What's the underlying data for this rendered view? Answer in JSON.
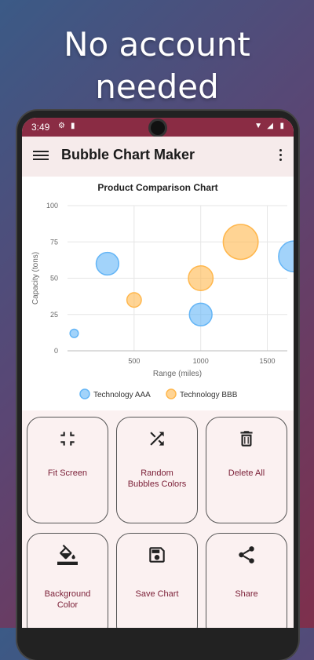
{
  "headline": "No account\nneeded",
  "status": {
    "time": "3:49"
  },
  "appbar": {
    "title": "Bubble Chart Maker"
  },
  "colors": {
    "accent": "#8a2c44",
    "seriesA": "#64b5f6",
    "seriesB": "#ffb74d"
  },
  "chart_data": {
    "type": "scatter",
    "title": "Product Comparison Chart",
    "xlabel": "Range (miles)",
    "ylabel": "Capacity (tons)",
    "xlim": [
      0,
      1650
    ],
    "ylim": [
      0,
      100
    ],
    "xticks": [
      500,
      1000,
      1500
    ],
    "yticks": [
      0,
      25,
      50,
      75,
      100
    ],
    "grid": true,
    "legend_position": "bottom",
    "series": [
      {
        "name": "Technology AAA",
        "color": "#64b5f6",
        "points": [
          {
            "x": 50,
            "y": 12,
            "size": 1
          },
          {
            "x": 300,
            "y": 60,
            "size": 8
          },
          {
            "x": 1000,
            "y": 25,
            "size": 8
          },
          {
            "x": 1700,
            "y": 65,
            "size": 12
          }
        ]
      },
      {
        "name": "Technology BBB",
        "color": "#ffb74d",
        "points": [
          {
            "x": 500,
            "y": 35,
            "size": 4
          },
          {
            "x": 1000,
            "y": 50,
            "size": 9
          },
          {
            "x": 1300,
            "y": 75,
            "size": 14
          }
        ]
      }
    ]
  },
  "buttons": [
    {
      "id": "fit",
      "label": "Fit Screen",
      "icon": "fit-screen-icon"
    },
    {
      "id": "random",
      "label": "Random\nBubbles Colors",
      "icon": "shuffle-icon"
    },
    {
      "id": "delete",
      "label": "Delete All",
      "icon": "trash-icon"
    },
    {
      "id": "bg",
      "label": "Background\nColor",
      "icon": "paint-bucket-icon"
    },
    {
      "id": "save",
      "label": "Save Chart",
      "icon": "save-icon"
    },
    {
      "id": "share",
      "label": "Share",
      "icon": "share-icon"
    }
  ]
}
